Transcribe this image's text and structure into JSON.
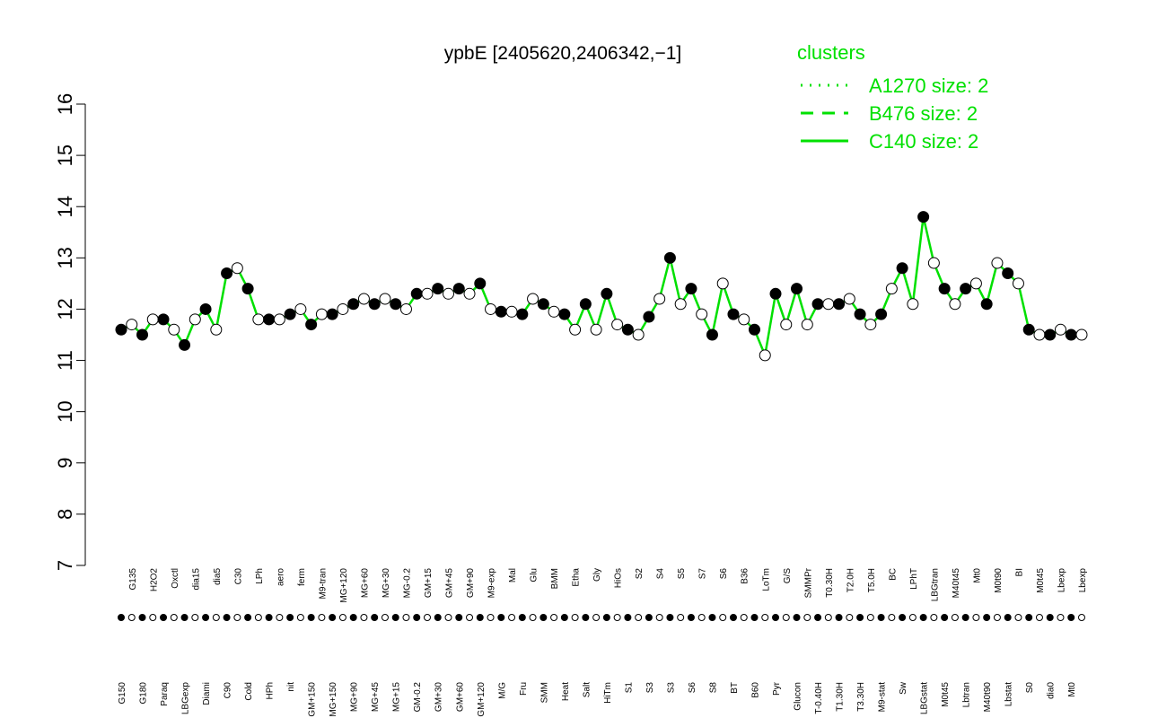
{
  "chart_data": {
    "type": "line",
    "title": "ypbE [2405620,2406342,−1]",
    "ylim": [
      7,
      16
    ],
    "yticks": [
      7,
      8,
      9,
      10,
      11,
      12,
      13,
      14,
      15,
      16
    ],
    "color": "#00e000",
    "legend": {
      "title": "clusters",
      "entries": [
        {
          "name": "A1270 size: 2",
          "dash": "dotted"
        },
        {
          "name": "B476 size: 2",
          "dash": "dashed"
        },
        {
          "name": "C140 size: 2",
          "dash": "solid"
        }
      ]
    },
    "categories": [
      "G150",
      "G135",
      "G180",
      "H2O2",
      "Paraq",
      "Oxctl",
      "LBGexp",
      "dia15",
      "Diami",
      "dia5",
      "C90",
      "C30",
      "Cold",
      "LPh",
      "HPh",
      "aero",
      "nit",
      "ferm",
      "GM+150",
      "M9-tran",
      "MG+150",
      "MG+120",
      "MG+90",
      "MG+60",
      "MG+45",
      "MG+30",
      "MG+15",
      "MG-0.2",
      "GM-0.2",
      "GM+15",
      "GM+30",
      "GM+45",
      "GM+60",
      "GM+90",
      "GM+120",
      "M9-exp",
      "M/G",
      "Mal",
      "Fru",
      "Glu",
      "SMM",
      "BMM",
      "Heat",
      "Etha",
      "Salt",
      "Gly",
      "HiTm",
      "HiOs",
      "S1",
      "S2",
      "S3",
      "S4",
      "S3",
      "S5",
      "S6",
      "S7",
      "S8",
      "S6",
      "BT",
      "B36",
      "B60",
      "LoTm",
      "Pyr",
      "G/S",
      "Glucon",
      "SMMPr",
      "T-0.40H",
      "T0.30H",
      "T1.30H",
      "T2.0H",
      "T3.30H",
      "T5.0H",
      "M9-stat",
      "BC",
      "Sw",
      "LPhT",
      "LBGstat",
      "LBGtran",
      "M0t45",
      "M40t45",
      "Lbtran",
      "Mt0",
      "M40t90",
      "M0t90",
      "Lbstat",
      "BI",
      "S0",
      "M0t45",
      "dia0",
      "Lbexp",
      "Mt0",
      "Lbexp"
    ],
    "values": [
      11.6,
      11.7,
      11.5,
      11.8,
      11.8,
      11.6,
      11.3,
      11.8,
      12.0,
      11.6,
      12.7,
      12.8,
      12.4,
      11.8,
      11.8,
      11.8,
      11.9,
      12.0,
      11.7,
      11.9,
      11.9,
      12.0,
      12.1,
      12.2,
      12.1,
      12.2,
      12.1,
      12.0,
      12.3,
      12.3,
      12.4,
      12.3,
      12.4,
      12.3,
      12.5,
      12.0,
      11.95,
      11.95,
      11.9,
      12.2,
      12.1,
      11.95,
      11.9,
      11.6,
      12.1,
      11.6,
      12.3,
      11.7,
      11.6,
      11.5,
      11.85,
      12.2,
      13.0,
      12.1,
      12.4,
      11.9,
      11.5,
      12.5,
      11.9,
      11.8,
      11.6,
      11.1,
      12.3,
      11.7,
      12.4,
      11.7,
      12.1,
      12.1,
      12.1,
      12.2,
      11.9,
      11.7,
      11.9,
      12.4,
      12.8,
      12.1,
      13.8,
      12.9,
      12.4,
      12.1,
      12.4,
      12.5,
      12.1,
      12.9,
      12.7,
      12.5,
      11.6,
      11.5,
      11.5,
      11.6,
      11.5,
      11.5
    ]
  }
}
